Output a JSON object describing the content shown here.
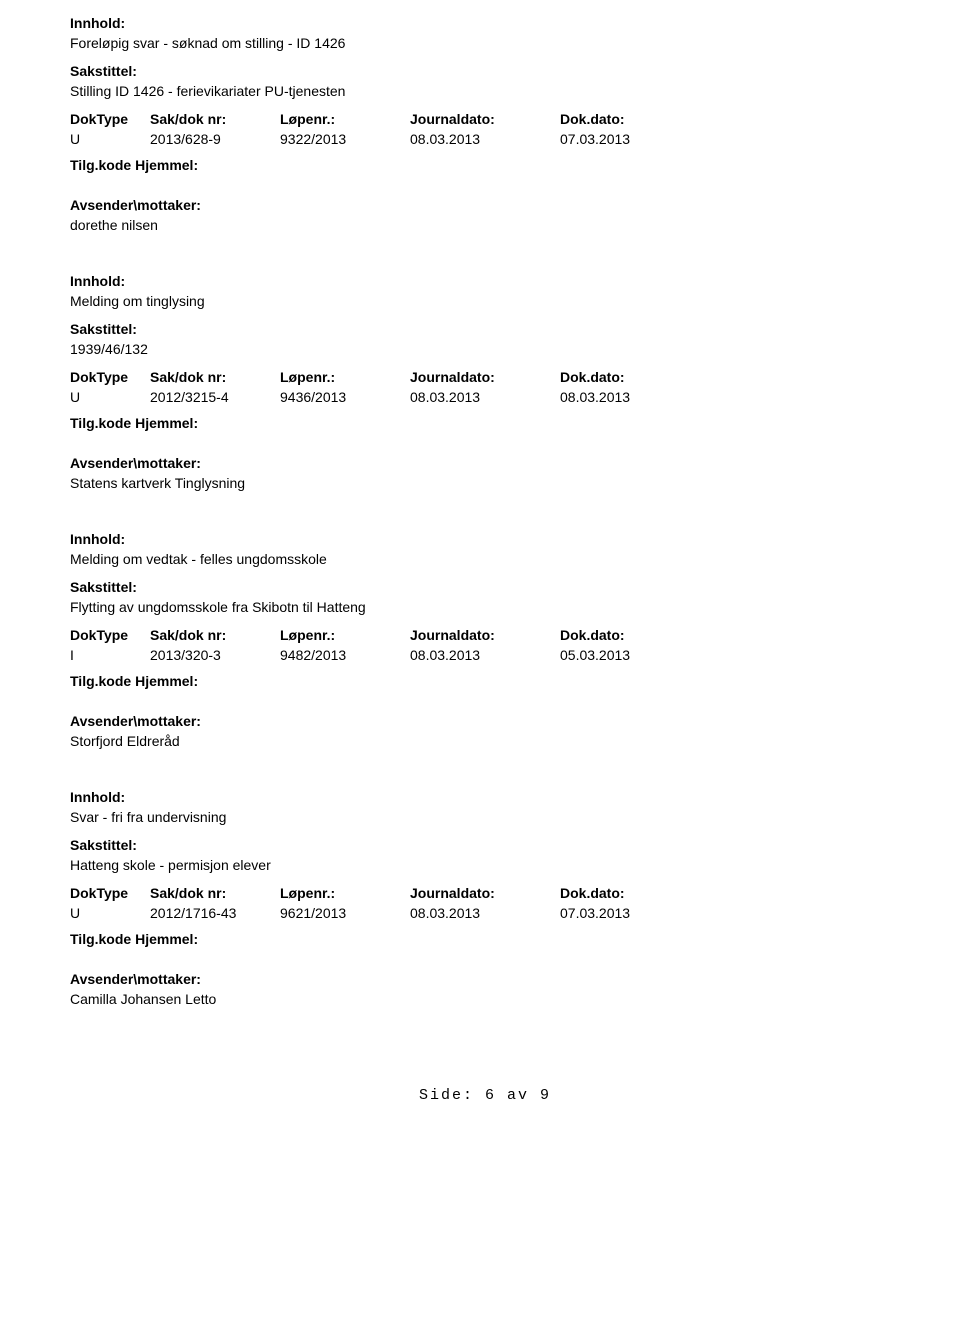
{
  "labels": {
    "innhold": "Innhold:",
    "sakstittel": "Sakstittel:",
    "doktype": "DokType",
    "sakdoknr": "Sak/dok nr:",
    "lopenr": "Løpenr.:",
    "journaldato": "Journaldato:",
    "dokdato": "Dok.dato:",
    "tilgkode": "Tilg.kode Hjemmel:",
    "avsender": "Avsender\\mottaker:"
  },
  "entries": [
    {
      "innhold": "Foreløpig svar - søknad om stilling - ID 1426",
      "sakstittel": "Stilling ID 1426 - ferievikariater PU-tjenesten",
      "doktype": "U",
      "sakdoknr": "2013/628-9",
      "lopenr": "9322/2013",
      "journaldato": "08.03.2013",
      "dokdato": "07.03.2013",
      "avsender": "dorethe nilsen"
    },
    {
      "innhold": "Melding om tinglysing",
      "sakstittel": "1939/46/132",
      "doktype": "U",
      "sakdoknr": "2012/3215-4",
      "lopenr": "9436/2013",
      "journaldato": "08.03.2013",
      "dokdato": "08.03.2013",
      "avsender": "Statens kartverk Tinglysning"
    },
    {
      "innhold": "Melding om vedtak - felles ungdomsskole",
      "sakstittel": "Flytting av ungdomsskole fra Skibotn til Hatteng",
      "doktype": "I",
      "sakdoknr": "2013/320-3",
      "lopenr": "9482/2013",
      "journaldato": "08.03.2013",
      "dokdato": "05.03.2013",
      "avsender": "Storfjord Eldreråd"
    },
    {
      "innhold": "Svar - fri fra undervisning",
      "sakstittel": "Hatteng skole - permisjon elever",
      "doktype": "U",
      "sakdoknr": "2012/1716-43",
      "lopenr": "9621/2013",
      "journaldato": "08.03.2013",
      "dokdato": "07.03.2013",
      "avsender": "Camilla Johansen Letto"
    }
  ],
  "footer": "Side: 6 av 9"
}
